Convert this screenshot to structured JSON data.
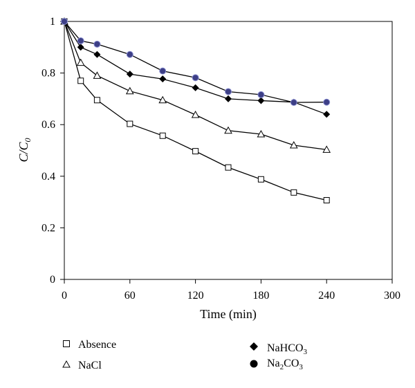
{
  "chart_data": {
    "type": "line",
    "xlabel": "Time (min)",
    "ylabel": "C/C",
    "ylabel_sub": "0",
    "xlim": [
      0,
      300
    ],
    "ylim": [
      0,
      1
    ],
    "x_ticks": [
      0,
      60,
      120,
      180,
      240,
      300
    ],
    "y_ticks": [
      0,
      0.2,
      0.4,
      0.6,
      0.8,
      1
    ],
    "y_tick_labels": [
      "0",
      "0.2",
      "0.4",
      "0.6",
      "0.8",
      "1"
    ],
    "grid": false,
    "legend_position": "bottom",
    "series": [
      {
        "name": "Absence",
        "marker": "square-open",
        "x": [
          0,
          15,
          30,
          60,
          90,
          120,
          150,
          180,
          210,
          240
        ],
        "y": [
          1.0,
          0.77,
          0.695,
          0.603,
          0.557,
          0.497,
          0.434,
          0.388,
          0.337,
          0.307
        ]
      },
      {
        "name": "NaCl",
        "marker": "triangle-open",
        "x": [
          0,
          15,
          30,
          60,
          90,
          120,
          150,
          180,
          210,
          240
        ],
        "y": [
          1.0,
          0.84,
          0.79,
          0.73,
          0.695,
          0.638,
          0.577,
          0.563,
          0.52,
          0.503
        ]
      },
      {
        "name": "NaHCO",
        "name_sub": "3",
        "marker": "diamond-filled",
        "x": [
          0,
          15,
          30,
          60,
          90,
          120,
          150,
          180,
          210,
          240
        ],
        "y": [
          1.0,
          0.9,
          0.872,
          0.796,
          0.777,
          0.743,
          0.7,
          0.693,
          0.687,
          0.64
        ]
      },
      {
        "name": "Na",
        "name_sub": "2",
        "name_rest": "CO",
        "name_sub2": "3",
        "marker": "circle-filled",
        "x": [
          0,
          15,
          30,
          60,
          90,
          120,
          150,
          180,
          210,
          240
        ],
        "y": [
          1.0,
          0.925,
          0.912,
          0.872,
          0.808,
          0.782,
          0.728,
          0.716,
          0.686,
          0.687
        ]
      }
    ]
  }
}
